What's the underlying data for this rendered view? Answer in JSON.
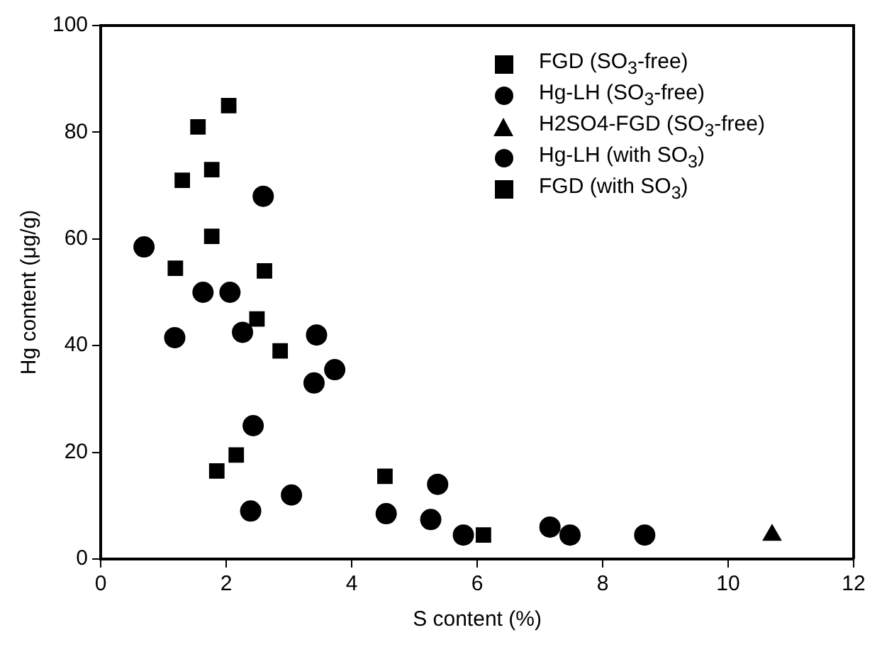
{
  "chart_data": {
    "type": "scatter",
    "xlabel": "S content (%)",
    "ylabel": "Hg content (μg/g)",
    "xlim": [
      0,
      12
    ],
    "xticks": [
      0,
      2,
      4,
      6,
      8,
      10,
      12
    ],
    "ylim": [
      0,
      100
    ],
    "yticks": [
      0,
      20,
      40,
      60,
      80,
      100
    ],
    "grid": false,
    "legend": "top right",
    "series": [
      {
        "name": "FGD (SO$_{3}$-free)",
        "color": "#000000",
        "marker": "square",
        "x": [
          2.04,
          1.55,
          1.77,
          1.3,
          1.77,
          1.19,
          2.61,
          2.49,
          2.86
        ],
        "values": [
          85,
          81,
          73,
          71,
          60.5,
          54.5,
          54,
          45,
          39
        ]
      },
      {
        "name": "Hg-LH (SO$_{3}$-free)",
        "color": "#000000",
        "marker": "circle",
        "x": [
          2.59,
          0.69,
          1.63,
          2.06,
          1.18,
          2.26,
          3.44,
          3.4,
          3.73,
          2.43
        ],
        "values": [
          68,
          58.5,
          50,
          50,
          41.5,
          42.5,
          42,
          33,
          35.5,
          25
        ]
      },
      {
        "name": "H2SO4-FGD (SO$_{3}$-free)",
        "color": "#000000",
        "marker": "triangle",
        "x": [
          10.7
        ],
        "values": [
          4.5
        ]
      },
      {
        "name": "Hg-LH (with SO$_{3}$)",
        "color": "#000000",
        "marker": "circle",
        "x": [
          2.39,
          3.04,
          4.55,
          5.26,
          5.37,
          5.78,
          7.16,
          7.48,
          8.67
        ],
        "values": [
          9,
          12,
          8.5,
          7.4,
          14,
          4.5,
          6,
          4.5,
          4.5
        ]
      },
      {
        "name": "FGD (with SO$_{3}$)",
        "color": "#000000",
        "marker": "square",
        "x": [
          1.85,
          2.16,
          4.53,
          4.55,
          6.1
        ],
        "values": [
          16.5,
          19.5,
          15.5,
          null,
          4.5
        ]
      }
    ]
  }
}
